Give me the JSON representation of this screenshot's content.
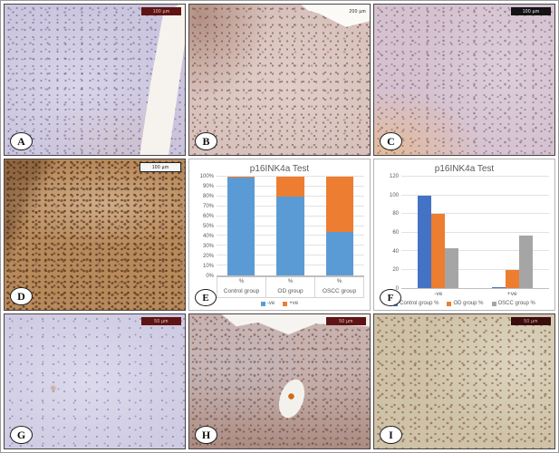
{
  "figure": {
    "panels": [
      {
        "letter": "A",
        "scale_text": "100 µm"
      },
      {
        "letter": "B",
        "scale_text": "200 µm"
      },
      {
        "letter": "C",
        "scale_text": "100 µm"
      },
      {
        "letter": "D",
        "scale_text": "100 µm"
      },
      {
        "letter": "E"
      },
      {
        "letter": "F"
      },
      {
        "letter": "G",
        "scale_text": "50 µm"
      },
      {
        "letter": "H",
        "scale_text": "50 µm"
      },
      {
        "letter": "I",
        "scale_text": "50 µm"
      }
    ]
  },
  "chart_data": [
    {
      "id": "E",
      "type": "bar",
      "subtype": "stacked",
      "title": "p16INK4a Test",
      "categories": [
        "Control group",
        "OD group",
        "OSCC group"
      ],
      "category_sub_label": "%",
      "series": [
        {
          "name": "-ve",
          "color": "#5B9BD5",
          "values": [
            99,
            80,
            44
          ]
        },
        {
          "name": "+ve",
          "color": "#ED7D31",
          "values": [
            1,
            20,
            56
          ]
        }
      ],
      "ylim": [
        0,
        100
      ],
      "ytick_step": 10,
      "ytick_suffix": "%",
      "grid": true,
      "legend_position": "bottom"
    },
    {
      "id": "F",
      "type": "bar",
      "subtype": "grouped",
      "title": "p16INK4a Test",
      "categories": [
        "-ve",
        "+ve"
      ],
      "series": [
        {
          "name": "Control group %",
          "color": "#4472C4",
          "values": [
            100,
            0.5
          ]
        },
        {
          "name": "OD group %",
          "color": "#ED7D31",
          "values": [
            80,
            20
          ]
        },
        {
          "name": "OSCC group %",
          "color": "#A5A5A5",
          "values": [
            43,
            57
          ]
        }
      ],
      "ylim": [
        0,
        120
      ],
      "ytick_step": 20,
      "ytick_suffix": "",
      "grid": true,
      "legend_position": "bottom"
    }
  ]
}
